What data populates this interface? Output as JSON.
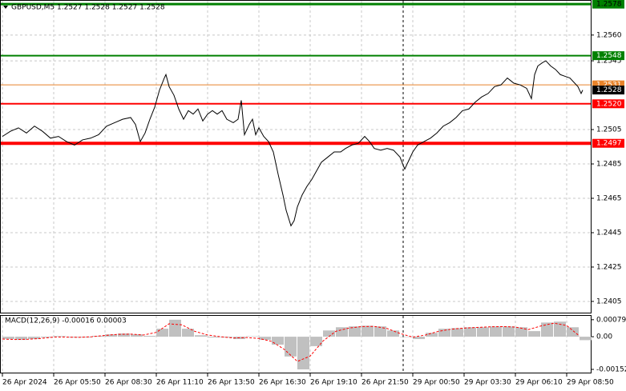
{
  "chart_data": [
    {
      "type": "line",
      "title": "GBPUSD,M5 1.2527 1.2528 1.2527 1.2528",
      "x": [
        0,
        5,
        10,
        15,
        20,
        25,
        30,
        35,
        40,
        45,
        50,
        55,
        60,
        65,
        70,
        75,
        80,
        83,
        86,
        89,
        92,
        95,
        98,
        101,
        102,
        104,
        107,
        110,
        113,
        116,
        119,
        122,
        125,
        128,
        131,
        134,
        137,
        140,
        144,
        147,
        149,
        151,
        154,
        156,
        158,
        160,
        163,
        166,
        169,
        172,
        175,
        177,
        180,
        182,
        184,
        187,
        190,
        193,
        196,
        199,
        203,
        207,
        211,
        214,
        218,
        222,
        226,
        229,
        232,
        236,
        240,
        244,
        248,
        251,
        253,
        256,
        259,
        263,
        267,
        271,
        275,
        279,
        283,
        287,
        291,
        295,
        299,
        303,
        307,
        311,
        315,
        319,
        323,
        327,
        330,
        332,
        334,
        337,
        339,
        342,
        345,
        348,
        351,
        354,
        357,
        359,
        361,
        362
      ],
      "values": [
        1.2501,
        1.2504,
        1.2506,
        1.2503,
        1.2507,
        1.2504,
        1.25,
        1.2501,
        1.2498,
        1.2496,
        1.2499,
        1.25,
        1.2502,
        1.2507,
        1.2509,
        1.2511,
        1.2512,
        1.2508,
        1.2498,
        1.2503,
        1.2511,
        1.2518,
        1.2528,
        1.2535,
        1.2537,
        1.253,
        1.2525,
        1.2517,
        1.2511,
        1.2516,
        1.2514,
        1.2517,
        1.251,
        1.2514,
        1.2516,
        1.2514,
        1.2516,
        1.2511,
        1.2509,
        1.2511,
        1.2522,
        1.2502,
        1.2508,
        1.2511,
        1.2502,
        1.2506,
        1.2501,
        1.2498,
        1.2492,
        1.2479,
        1.2467,
        1.2458,
        1.2449,
        1.2452,
        1.246,
        1.2467,
        1.2472,
        1.2476,
        1.2481,
        1.2486,
        1.2489,
        1.2492,
        1.2492,
        1.2494,
        1.2496,
        1.2497,
        1.2501,
        1.2498,
        1.2494,
        1.2493,
        1.2494,
        1.2493,
        1.2489,
        1.2482,
        1.2486,
        1.2492,
        1.2496,
        1.2498,
        1.25,
        1.2503,
        1.2507,
        1.2509,
        1.2512,
        1.2516,
        1.2517,
        1.2521,
        1.2524,
        1.2526,
        1.253,
        1.2531,
        1.2535,
        1.2532,
        1.2531,
        1.2529,
        1.2523,
        1.2537,
        1.2542,
        1.2544,
        1.2545,
        1.2542,
        1.254,
        1.2537,
        1.2536,
        1.2535,
        1.2532,
        1.253,
        1.2526,
        1.2528
      ],
      "color": "#000000",
      "xlim": [
        0,
        367
      ],
      "xticks": [
        {
          "value": 0,
          "label": "26 Apr 2024"
        },
        {
          "value": 32,
          "label": "26 Apr 05:50"
        },
        {
          "value": 64,
          "label": "26 Apr 08:30"
        },
        {
          "value": 96,
          "label": "26 Apr 11:10"
        },
        {
          "value": 128,
          "label": "26 Apr 13:50"
        },
        {
          "value": 160,
          "label": "26 Apr 16:30"
        },
        {
          "value": 192,
          "label": "26 Apr 19:10"
        },
        {
          "value": 224,
          "label": "26 Apr 21:50"
        },
        {
          "value": 256,
          "label": "29 Apr 00:50"
        },
        {
          "value": 288,
          "label": "29 Apr 03:30"
        },
        {
          "value": 320,
          "label": "29 Apr 06:10"
        },
        {
          "value": 352,
          "label": "29 Apr 08:50"
        }
      ],
      "ylim": [
        1.2398,
        1.2579
      ],
      "yticks": [
        {
          "value": 1.256,
          "label": "1.2560"
        },
        1.2545,
        1.2505,
        1.2485,
        1.2465,
        1.2445,
        1.2425,
        1.2405
      ],
      "grid": true,
      "day_separator": 250,
      "levels": [
        {
          "price": 1.2578,
          "color": "#008000"
        },
        {
          "price": 1.2548,
          "color": "#008000"
        },
        {
          "price": 1.2531,
          "color": "#e8832a"
        },
        {
          "price": 1.252,
          "label": "1.2520",
          "color": "#ff0000"
        },
        {
          "price": 1.2497,
          "color": "#ff0000"
        }
      ],
      "bid": 1.2528
    },
    {
      "type": "macd",
      "title": "MACD(12,26,9) -0.00016 0.00003",
      "x": [
        0,
        8,
        16,
        24,
        32,
        40,
        48,
        56,
        64,
        72,
        80,
        88,
        96,
        104,
        112,
        120,
        128,
        136,
        144,
        152,
        160,
        168,
        176,
        184,
        192,
        200,
        208,
        216,
        224,
        232,
        240,
        248,
        256,
        264,
        272,
        280,
        288,
        296,
        304,
        312,
        320,
        328,
        336,
        344,
        352,
        360
      ],
      "series": [
        {
          "type": "bar",
          "color": "#c0c0c0",
          "values": [
            -0.00011,
            -0.00015,
            -0.00011,
            -4e-05,
            3e-05,
            -4e-05,
            -4e-05,
            4e-05,
            0.00011,
            0.00015,
            0.00011,
            4e-05,
            0.00037,
            0.00079,
            0.00037,
            7e-05,
            -4e-05,
            -4e-05,
            -0.00011,
            2e-05,
            -0.00015,
            -0.00037,
            -0.00092,
            -0.00152,
            -0.00044,
            0.00029,
            0.00044,
            0.00048,
            0.00051,
            0.00048,
            0.00029,
            0,
            -0.00011,
            0.00018,
            0.00037,
            0.0004,
            0.00044,
            0.00044,
            0.00048,
            0.00048,
            0.00044,
            0.00026,
            0.00066,
            0.0007,
            0.00044,
            -0.00016
          ]
        },
        {
          "type": "line",
          "color": "#ff0000",
          "values": [
            -0.00011,
            -0.00013,
            -0.00012,
            -8e-05,
            -2e-05,
            -2e-05,
            -3e-05,
            0,
            6e-05,
            0.00011,
            0.00012,
            8e-05,
            0.0002,
            0.0006,
            0.00055,
            0.00025,
            8e-05,
            0,
            -6e-05,
            -4e-05,
            -8e-05,
            -0.00022,
            -0.0006,
            -0.00115,
            -0.0009,
            -0.0002,
            0.00025,
            0.0004,
            0.00047,
            0.00048,
            0.00038,
            0.00015,
            -2e-05,
            8e-05,
            0.00025,
            0.00035,
            0.0004,
            0.00043,
            0.00046,
            0.00047,
            0.00045,
            0.00033,
            0.0005,
            0.00063,
            0.00052,
            3e-05
          ]
        }
      ],
      "xlim": [
        0,
        367
      ],
      "ylim": [
        -0.00167,
        0.00097
      ],
      "yticks": [
        0.00079,
        {
          "value": 0,
          "label": "0.00"
        },
        -0.00152
      ]
    }
  ]
}
